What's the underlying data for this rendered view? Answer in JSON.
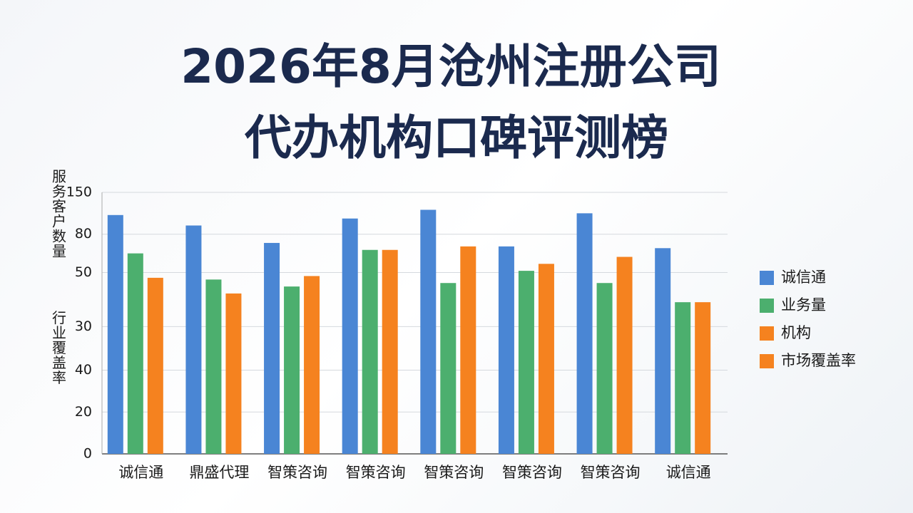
{
  "chart_data": {
    "type": "bar",
    "title": [
      "2026年8月沧州注册公司",
      "代办机构口碑评测榜"
    ],
    "y_label": [
      "服务客户数量",
      "行业覆盖率"
    ],
    "categories": [
      "诚信通",
      "鼎盛代理",
      "智策咨询",
      "智策咨询",
      "智策咨询",
      "智策咨询",
      "智策咨询",
      "诚信通"
    ],
    "series": [
      {
        "name": "诚信通",
        "color": "#4a86d4",
        "values": [
          137,
          131,
          121,
          135,
          140,
          119,
          138,
          118
        ]
      },
      {
        "name": "业务量",
        "color": "#4caf6e",
        "values": [
          115,
          100,
          96,
          117,
          98,
          105,
          98,
          87
        ]
      },
      {
        "name": "机构",
        "color": "#f5821f",
        "values": [
          101,
          92,
          102,
          117,
          119,
          109,
          113,
          87
        ]
      }
    ],
    "legend_extra": [
      {
        "name": "市场覆盖率",
        "color": "#f5821f"
      }
    ],
    "ylim": [
      0,
      150
    ],
    "yticks": [
      0,
      {
        "value": 24,
        "label": "20"
      },
      {
        "value": 48,
        "label": "40"
      },
      {
        "value": 73,
        "label": "30"
      },
      {
        "value": 104,
        "label": "50"
      },
      {
        "value": 126,
        "label": "80"
      },
      150
    ],
    "grid": true,
    "legend": "right"
  }
}
